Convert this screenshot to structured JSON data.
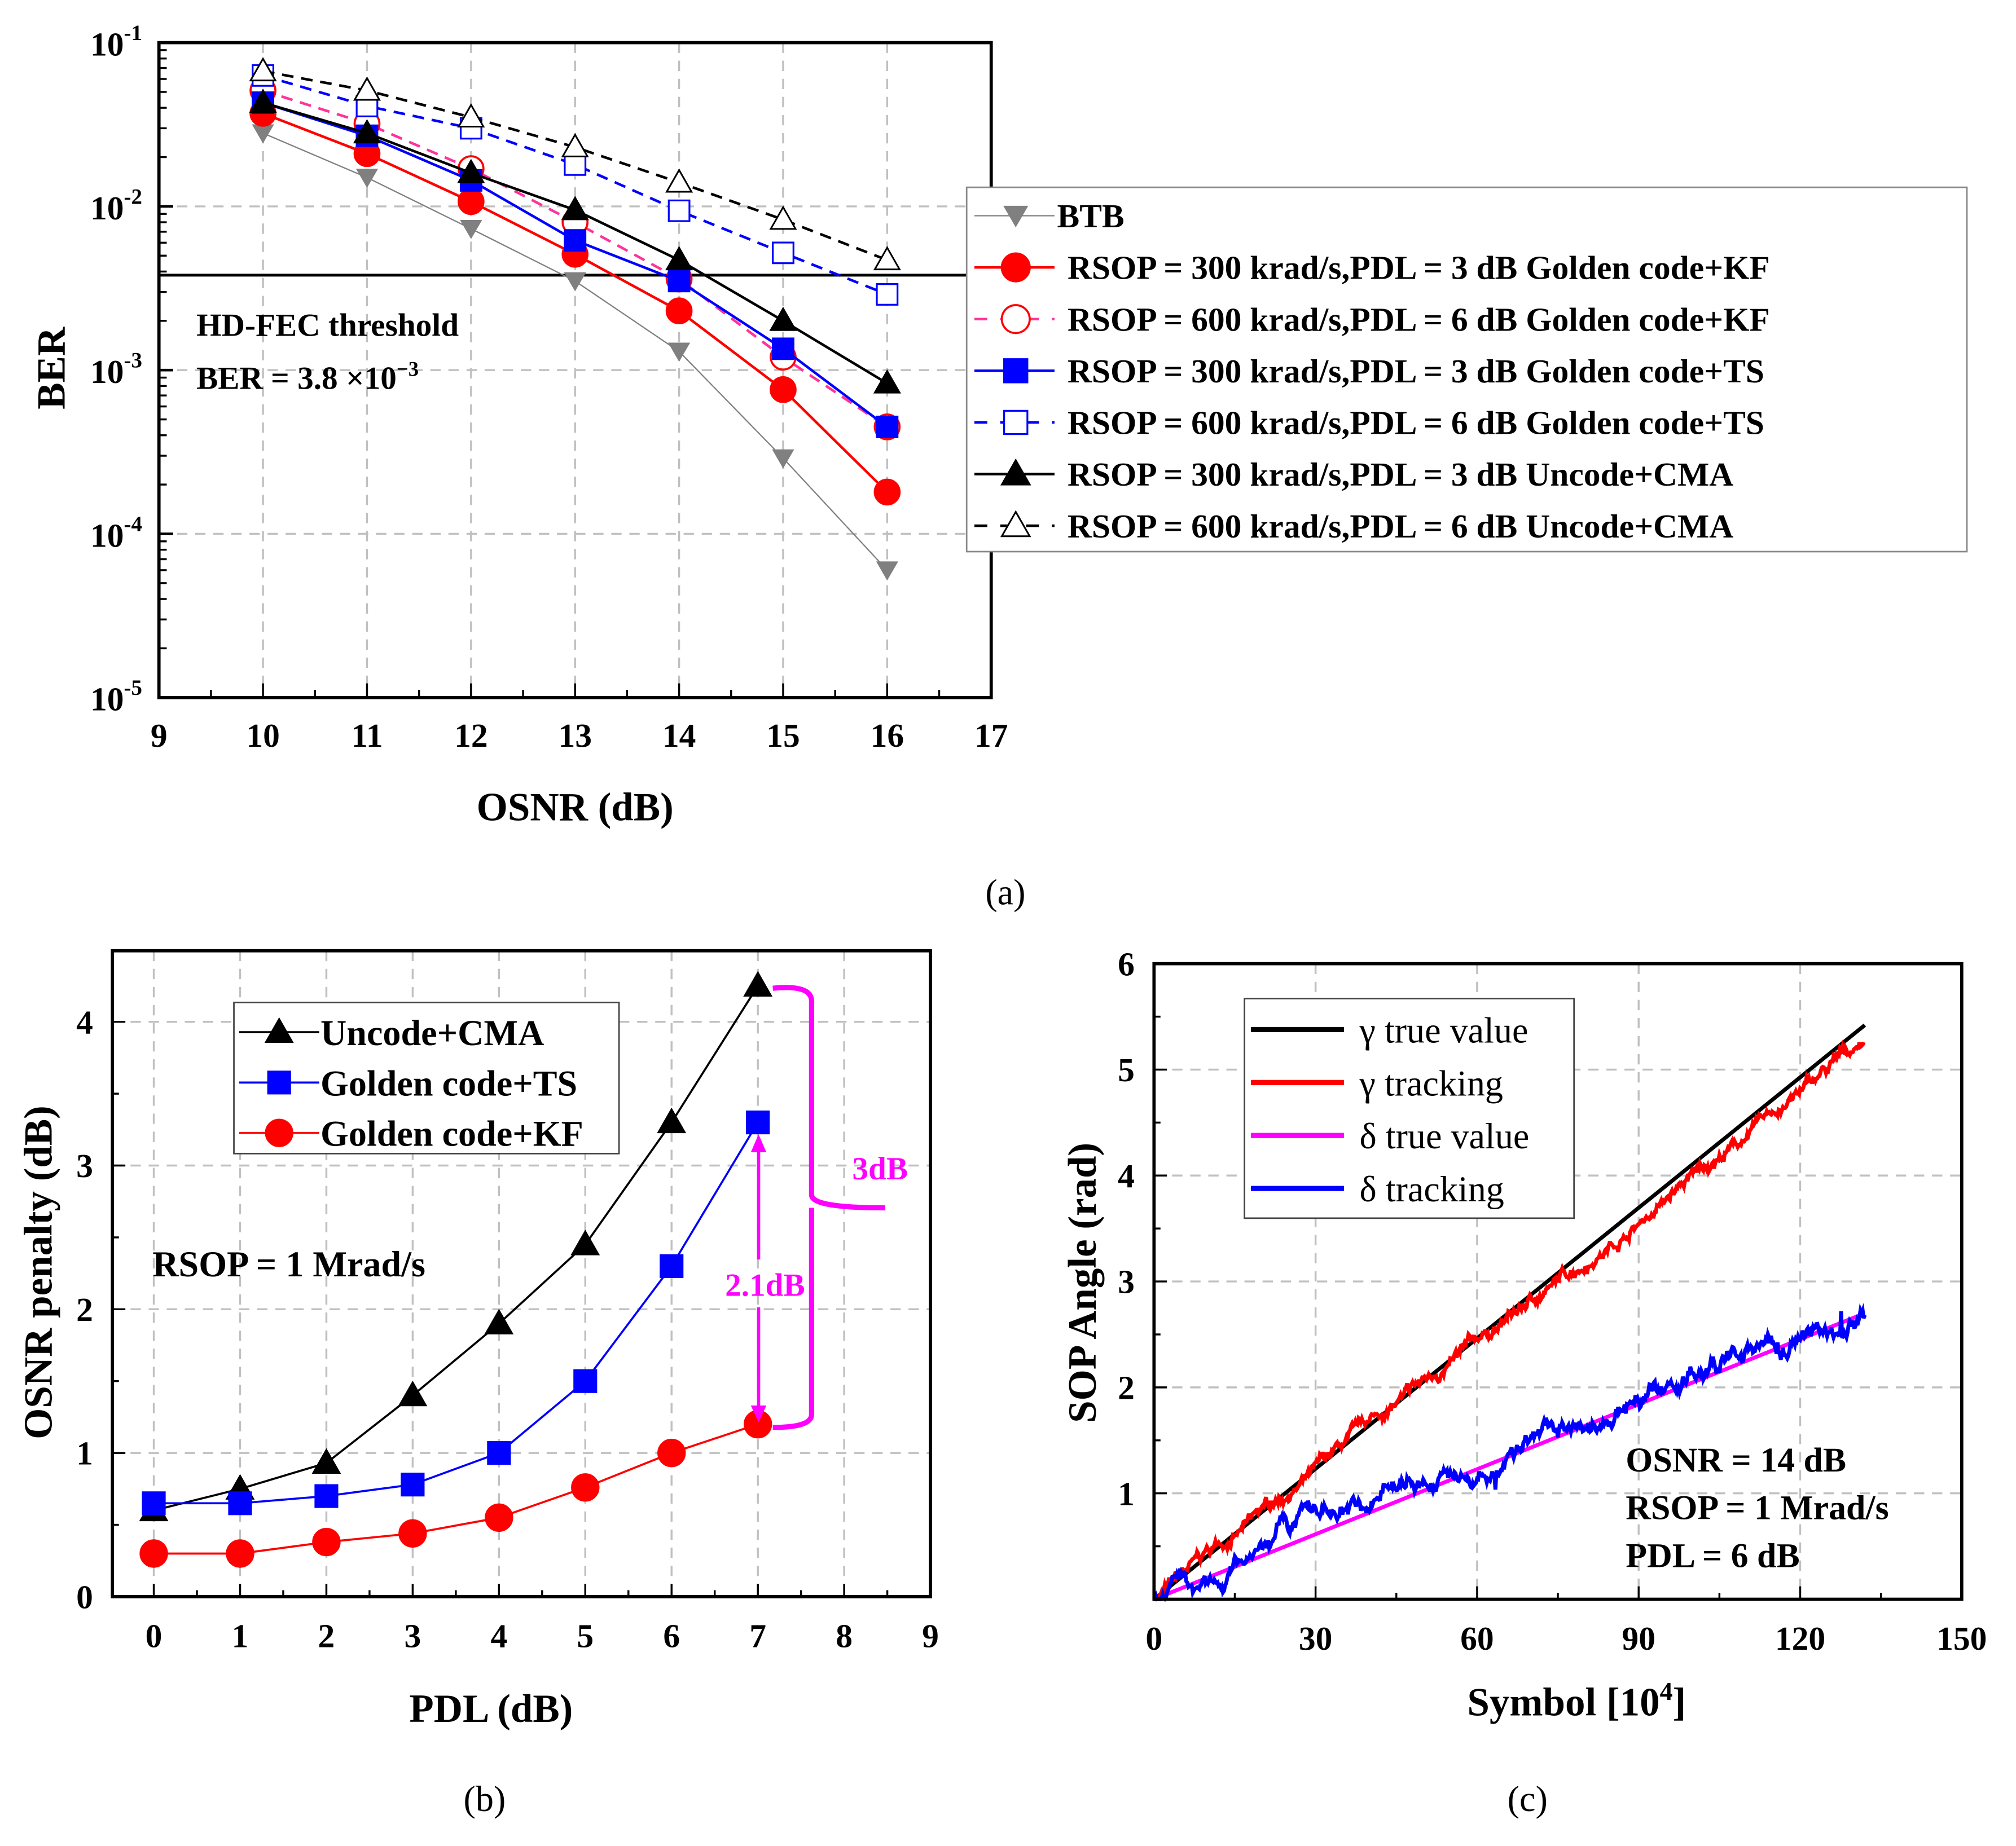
{
  "chart_data": [
    {
      "id": "a",
      "caption": "(a)",
      "type": "line",
      "xlabel": "OSNR (dB)",
      "ylabel": "BER",
      "xlim": [
        9,
        17
      ],
      "ylim": [
        1e-05,
        0.1
      ],
      "yscale": "log",
      "grid": true,
      "x_ticks": [
        "9",
        "10",
        "11",
        "12",
        "13",
        "14",
        "15",
        "16",
        "17"
      ],
      "y_ticks": [
        {
          "base": "10",
          "exp": "-1"
        },
        {
          "base": "10",
          "exp": "-2"
        },
        {
          "base": "10",
          "exp": "-3"
        },
        {
          "base": "10",
          "exp": "-4"
        },
        {
          "base": "10",
          "exp": "-5"
        }
      ],
      "x": [
        10,
        11,
        12,
        13,
        14,
        15,
        16
      ],
      "series": [
        {
          "name": "BTB",
          "color": "#808080",
          "marker": "down-triangle-filled",
          "dash": false,
          "values": [
            0.028,
            0.015,
            0.0073,
            0.0035,
            0.0013,
            0.00029,
            6e-05
          ]
        },
        {
          "name": "RSOP = 300 krad/s,PDL = 3 dB Golden code+KF",
          "color": "#ff0000",
          "marker": "circle-filled",
          "dash": false,
          "values": [
            0.037,
            0.021,
            0.0107,
            0.0051,
            0.0023,
            0.00076,
            0.00018
          ]
        },
        {
          "name": "RSOP = 600 krad/s,PDL = 6 dB Golden code+KF",
          "color": "#ff0000",
          "linecolor": "#ff3399",
          "marker": "circle-open",
          "dash": true,
          "values": [
            0.051,
            0.032,
            0.017,
            0.008,
            0.0036,
            0.0012,
            0.00045
          ]
        },
        {
          "name": "RSOP = 300 krad/s,PDL = 3 dB Golden code+TS",
          "color": "#0000ff",
          "marker": "square-filled",
          "dash": false,
          "values": [
            0.043,
            0.027,
            0.0144,
            0.0062,
            0.0035,
            0.00135,
            0.00045
          ]
        },
        {
          "name": "RSOP = 600 krad/s,PDL = 6 dB Golden code+TS",
          "color": "#0000ff",
          "marker": "square-open",
          "dash": true,
          "values": [
            0.063,
            0.041,
            0.03,
            0.018,
            0.0094,
            0.0052,
            0.0029
          ]
        },
        {
          "name": "RSOP = 300 krad/s,PDL = 3 dB Uncode+CMA",
          "color": "#000000",
          "marker": "triangle-filled",
          "dash": false,
          "values": [
            0.043,
            0.028,
            0.016,
            0.0095,
            0.0047,
            0.002,
            0.00083
          ]
        },
        {
          "name": "RSOP = 600 krad/s,PDL = 6 dB Uncode+CMA",
          "color": "#000000",
          "marker": "triangle-open",
          "dash": true,
          "values": [
            0.067,
            0.051,
            0.035,
            0.023,
            0.014,
            0.0083,
            0.0047
          ]
        }
      ],
      "threshold": {
        "value": 0.0038,
        "label1": "HD-FEC threshold",
        "label2_prefix": "BER = 3.8 ×10",
        "label2_exp": "−3"
      },
      "legend": "right"
    },
    {
      "id": "b",
      "caption": "(b)",
      "type": "line",
      "xlabel": "PDL (dB)",
      "ylabel": "OSNR penalty (dB)",
      "xlim": [
        -0.5,
        9
      ],
      "ylim": [
        0,
        4.5
      ],
      "grid": true,
      "x_ticks": [
        "0",
        "1",
        "2",
        "3",
        "4",
        "5",
        "6",
        "7",
        "8",
        "9"
      ],
      "y_ticks": [
        "0",
        "1",
        "2",
        "3",
        "4"
      ],
      "x": [
        0,
        1,
        2,
        3,
        4,
        5,
        6,
        7
      ],
      "series": [
        {
          "name": "Uncode+CMA",
          "color": "#000000",
          "marker": "triangle-filled",
          "values": [
            0.6,
            0.75,
            0.93,
            1.4,
            1.9,
            2.45,
            3.3,
            4.25
          ]
        },
        {
          "name": "Golden code+TS",
          "color": "#0000ff",
          "marker": "square-filled",
          "values": [
            0.65,
            0.65,
            0.7,
            0.78,
            1.0,
            1.5,
            2.3,
            3.3
          ]
        },
        {
          "name": "Golden code+KF",
          "color": "#ff0000",
          "marker": "circle-filled",
          "values": [
            0.3,
            0.3,
            0.38,
            0.44,
            0.55,
            0.76,
            1.0,
            1.2
          ]
        }
      ],
      "annotations": {
        "rsop": "RSOP = 1 Mrad/s",
        "gap_small": "2.1dB",
        "gap_large": "3dB",
        "color": "#ff00ff"
      },
      "legend": "top-left"
    },
    {
      "id": "c",
      "caption": "(c)",
      "type": "line",
      "xlabel_prefix": "Symbol  [10",
      "xlabel_exp": "4",
      "xlabel_suffix": "]",
      "ylabel": "SOP Angle (rad)",
      "xlim": [
        0,
        150
      ],
      "ylim": [
        0,
        6
      ],
      "grid": true,
      "x_ticks": [
        "0",
        "30",
        "60",
        "90",
        "120",
        "150"
      ],
      "y_ticks": [
        "1",
        "2",
        "3",
        "4",
        "5",
        "6"
      ],
      "series": [
        {
          "name": "γ true value",
          "color": "#000000",
          "x": [
            0,
            132
          ],
          "values": [
            0,
            5.42
          ]
        },
        {
          "name": "γ tracking",
          "color": "#ff0000",
          "x": [
            0,
            132
          ],
          "values": [
            0,
            5.25
          ],
          "noisy": true
        },
        {
          "name": "δ true value",
          "color": "#ff00ff",
          "x": [
            0,
            132
          ],
          "values": [
            0,
            2.7
          ]
        },
        {
          "name": "δ tracking",
          "color": "#0000ff",
          "x": [
            0,
            132
          ],
          "values": [
            0,
            2.72
          ],
          "noisy": true
        }
      ],
      "annotations": [
        "OSNR = 14 dB",
        "RSOP = 1 Mrad/s",
        "PDL = 6 dB"
      ],
      "legend": "top-left"
    }
  ]
}
